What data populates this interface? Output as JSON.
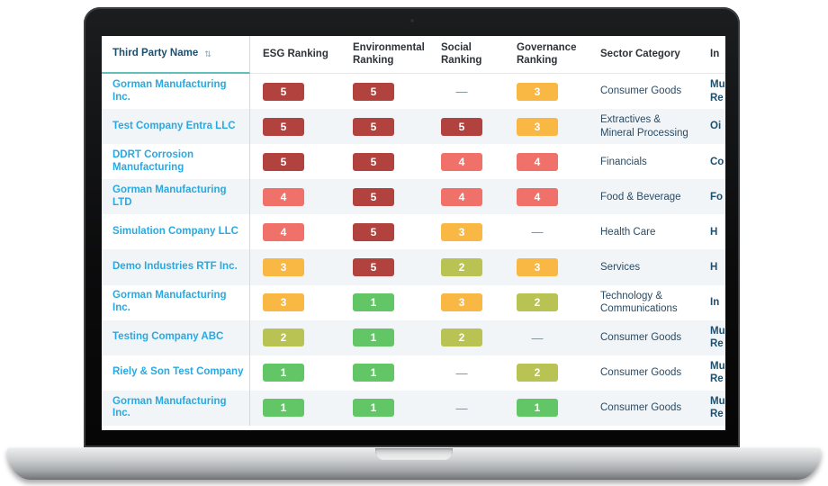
{
  "device": {
    "type": "laptop-mockup"
  },
  "colors": {
    "accent_teal": "#62bfba",
    "header_text": "#1d4f6e",
    "link_blue": "#2aa9e0",
    "row_alt_bg": "#f1f5f8",
    "rating_5": "#b2423e",
    "rating_4": "#f0716a",
    "rating_3": "#f9b843",
    "rating_2": "#b9c353",
    "rating_1": "#62c566"
  },
  "table": {
    "no_value_symbol": "—",
    "sort_icon": "⇅",
    "columns": [
      {
        "key": "name",
        "label": "Third Party Name",
        "sortable": true
      },
      {
        "key": "esg",
        "label": "ESG Ranking"
      },
      {
        "key": "environmental",
        "label": "Environmental Ranking"
      },
      {
        "key": "social",
        "label": "Social Ranking"
      },
      {
        "key": "governance",
        "label": "Governance Ranking"
      },
      {
        "key": "sector",
        "label": "Sector Category"
      },
      {
        "key": "industry",
        "label": "In"
      }
    ],
    "rows": [
      {
        "name": "Gorman Manufacturing Inc.",
        "esg": "5",
        "environmental": "5",
        "social": null,
        "governance": "3",
        "sector": "Consumer Goods",
        "industry_lines": [
          "Mu",
          "Re"
        ]
      },
      {
        "name": "Test Company Entra LLC",
        "esg": "5",
        "environmental": "5",
        "social": "5",
        "governance": "3",
        "sector": "Extractives & Mineral Processing",
        "industry_lines": [
          "Oi"
        ]
      },
      {
        "name": "DDRT Corrosion Manufacturing",
        "esg": "5",
        "environmental": "5",
        "social": "4",
        "governance": "4",
        "sector": "Financials",
        "industry_lines": [
          "Co"
        ]
      },
      {
        "name": "Gorman Manufacturing LTD",
        "esg": "4",
        "environmental": "5",
        "social": "4",
        "governance": "4",
        "sector": "Food & Beverage",
        "industry_lines": [
          "Fo"
        ]
      },
      {
        "name": "Simulation Company LLC",
        "esg": "4",
        "environmental": "5",
        "social": "3",
        "governance": null,
        "sector": "Health Care",
        "industry_lines": [
          "H"
        ]
      },
      {
        "name": "Demo Industries RTF Inc.",
        "esg": "3",
        "environmental": "5",
        "social": "2",
        "governance": "3",
        "sector": "Services",
        "industry_lines": [
          "H"
        ]
      },
      {
        "name": "Gorman Manufacturing Inc.",
        "esg": "3",
        "environmental": "1",
        "social": "3",
        "governance": "2",
        "sector": "Technology & Communications",
        "industry_lines": [
          "In"
        ]
      },
      {
        "name": "Testing Company ABC",
        "esg": "2",
        "environmental": "1",
        "social": "2",
        "governance": null,
        "sector": "Consumer Goods",
        "industry_lines": [
          "Mu",
          "Re"
        ]
      },
      {
        "name": "Riely & Son Test Company",
        "esg": "1",
        "environmental": "1",
        "social": null,
        "governance": "2",
        "sector": "Consumer Goods",
        "industry_lines": [
          "Mu",
          "Re"
        ]
      },
      {
        "name": "Gorman Manufacturing Inc.",
        "esg": "1",
        "environmental": "1",
        "social": null,
        "governance": "1",
        "sector": "Consumer Goods",
        "industry_lines": [
          "Mu",
          "Re"
        ]
      }
    ]
  }
}
